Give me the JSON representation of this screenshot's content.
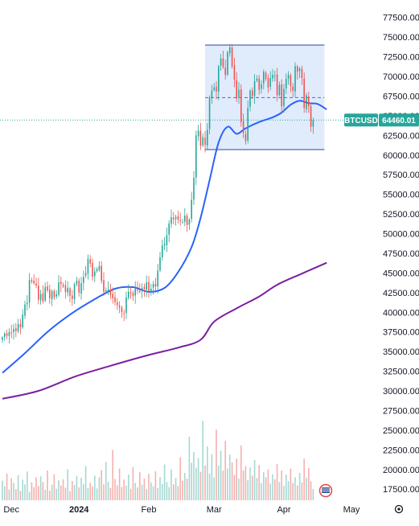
{
  "chart_data": {
    "type": "candlestick",
    "symbol_tag": "BTCUSD",
    "last_price": 64460.01,
    "last_price_label": "64460.01",
    "y_axis": {
      "ylim": [
        16500,
        78700
      ],
      "ticks": [
        17500,
        20000,
        22500,
        25000,
        27500,
        30000,
        32500,
        35000,
        37500,
        40000,
        42500,
        45000,
        47500,
        50000,
        52500,
        55000,
        57500,
        60000,
        62500,
        65000,
        67500,
        70000,
        72500,
        75000,
        77500
      ],
      "tick_labels": [
        "17500.00",
        "20000.00",
        "22500.00",
        "25000.00",
        "27500.00",
        "30000.00",
        "32500.00",
        "35000.00",
        "37500.00",
        "40000.00",
        "42500.00",
        "45000.00",
        "47500.00",
        "50000.00",
        "52500.00",
        "55000.00",
        "57500.00",
        "60000.00",
        "62500.00",
        "65000.00",
        "67500.00",
        "70000.00",
        "72500.00",
        "75000.00",
        "77500.00"
      ]
    },
    "x_axis": {
      "labels": [
        {
          "text": "Dec",
          "index": 4,
          "bold": false
        },
        {
          "text": "2024",
          "index": 34,
          "bold": true
        },
        {
          "text": "Feb",
          "index": 65,
          "bold": false
        },
        {
          "text": "Mar",
          "index": 94,
          "bold": false
        },
        {
          "text": "Apr",
          "index": 125,
          "bold": false
        },
        {
          "text": "May",
          "index": 155,
          "bold": false
        }
      ]
    },
    "grid": false,
    "colors": {
      "up": "#26a69a",
      "down": "#ef5350",
      "vol_up": "#a6d8d2",
      "vol_down": "#f3b1ae",
      "ma_fast": "#2962ff",
      "ma_slow": "#7b1fa2",
      "range_fill": "#dbe7fb",
      "range_border": "#2a4a9a",
      "label_bg": "#26a69a"
    },
    "range_box": {
      "start_index": 90,
      "end_index": 143,
      "top": 74000,
      "bottom": 60700,
      "mid": 67300
    },
    "closes": [
      36800,
      37300,
      37000,
      37500,
      37400,
      37900,
      37600,
      38500,
      38100,
      39700,
      41000,
      41200,
      44100,
      43900,
      43700,
      43400,
      41600,
      42300,
      41400,
      43200,
      42800,
      41800,
      42700,
      41900,
      42300,
      43800,
      43600,
      43300,
      42600,
      43100,
      42100,
      41700,
      43600,
      44000,
      42500,
      43700,
      44500,
      45000,
      46800,
      46200,
      44500,
      45200,
      45500,
      45900,
      44000,
      42600,
      42800,
      42900,
      42200,
      41800,
      41300,
      40900,
      40600,
      40000,
      39800,
      41900,
      42600,
      42400,
      42100,
      43000,
      42800,
      42600,
      43100,
      43000,
      43800,
      42700,
      43000,
      43600,
      43300,
      45300,
      47000,
      48500,
      48700,
      49800,
      51300,
      52100,
      51800,
      52100,
      51800,
      51600,
      51500,
      52300,
      51100,
      51800,
      54300,
      57100,
      62500,
      63100,
      61200,
      62300,
      61300,
      63200,
      67300,
      68200,
      68600,
      68100,
      71300,
      72300,
      71200,
      70200,
      73100,
      73700,
      71300,
      69600,
      67200,
      68300,
      64200,
      62800,
      61800,
      66000,
      68200,
      67500,
      69400,
      69700,
      68300,
      69000,
      70600,
      69700,
      68600,
      69800,
      70200,
      70100,
      67600,
      68900,
      66200,
      68400,
      69700,
      70200,
      68800,
      68200,
      71300,
      70600,
      71000,
      69800,
      66000,
      67600,
      66200,
      63600,
      64460
    ],
    "ma_fast": [
      [
        0,
        32300
      ],
      [
        10,
        34800
      ],
      [
        20,
        37500
      ],
      [
        30,
        39700
      ],
      [
        40,
        41500
      ],
      [
        50,
        43000
      ],
      [
        58,
        43200
      ],
      [
        65,
        42600
      ],
      [
        72,
        43100
      ],
      [
        78,
        45100
      ],
      [
        84,
        48300
      ],
      [
        88,
        52000
      ],
      [
        92,
        56800
      ],
      [
        96,
        61600
      ],
      [
        100,
        63600
      ],
      [
        104,
        62700
      ],
      [
        108,
        63400
      ],
      [
        114,
        64200
      ],
      [
        120,
        64800
      ],
      [
        124,
        65400
      ],
      [
        128,
        66400
      ],
      [
        132,
        66900
      ],
      [
        136,
        66600
      ],
      [
        140,
        66500
      ],
      [
        144,
        65800
      ]
    ],
    "ma_slow": [
      [
        0,
        29000
      ],
      [
        16,
        30000
      ],
      [
        32,
        31800
      ],
      [
        48,
        33200
      ],
      [
        64,
        34500
      ],
      [
        78,
        35500
      ],
      [
        88,
        36500
      ],
      [
        94,
        38800
      ],
      [
        104,
        40500
      ],
      [
        114,
        42000
      ],
      [
        122,
        43500
      ],
      [
        132,
        44800
      ],
      [
        144,
        46300
      ]
    ],
    "volumes": [
      5.8,
      4.1,
      7.9,
      3.2,
      6.5,
      5.1,
      3.3,
      7.4,
      2.8,
      6.1,
      4.7,
      8.5,
      2.5,
      5.3,
      3.9,
      6.8,
      4.2,
      7.1,
      5.4,
      3.1,
      8.8,
      2.8,
      4.6,
      7.7,
      3.4,
      5.9,
      4.4,
      6.2,
      3.7,
      9.2,
      2.7,
      5.7,
      4.5,
      7.2,
      3.8,
      6.7,
      4.8,
      10.1,
      3.6,
      5.2,
      4.1,
      7.3,
      3.5,
      6.8,
      8.9,
      4.7,
      11.3,
      5.5,
      3.6,
      14.9,
      6.3,
      4.4,
      9.4,
      3.9,
      6.1,
      4.3,
      7.6,
      3.4,
      9.8,
      5.1,
      3.8,
      8.3,
      4.6,
      6.4,
      3.3,
      7.8,
      5.3,
      4.1,
      8.6,
      3.6,
      6.9,
      4.8,
      10.6,
      5.4,
      3.9,
      9.1,
      4.7,
      6.6,
      4.2,
      12.7,
      5.8,
      8.1,
      6.4,
      18.8,
      11.1,
      14.3,
      9.6,
      12.5,
      8.4,
      23.5,
      10.3,
      15.9,
      7.9,
      13.6,
      6.8,
      20.9,
      10.2,
      14.7,
      8.8,
      17.6,
      9.4,
      13.5,
      11.2,
      7.5,
      12.3,
      6.4,
      16.2,
      8.8,
      10.1,
      5.9,
      9.7,
      7.3,
      11.9,
      6.6,
      10.4,
      5.1,
      8.3,
      6.8,
      9.1,
      4.9,
      7.7,
      6.2,
      10.7,
      5.4,
      8.8,
      4.3,
      7.6,
      5.7,
      9.4,
      5.1,
      6.8,
      4.4,
      8.1,
      5.3,
      12.3,
      6.7,
      9.5,
      5.6,
      3.4
    ]
  }
}
